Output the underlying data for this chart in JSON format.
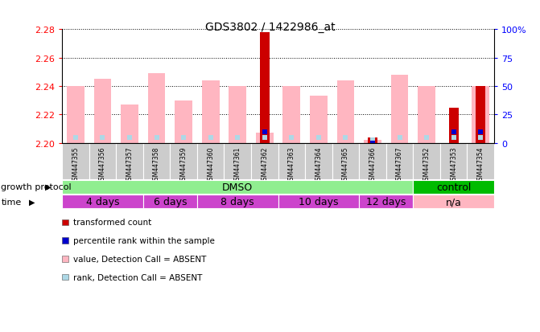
{
  "title": "GDS3802 / 1422986_at",
  "samples": [
    "GSM447355",
    "GSM447356",
    "GSM447357",
    "GSM447358",
    "GSM447359",
    "GSM447360",
    "GSM447361",
    "GSM447362",
    "GSM447363",
    "GSM447364",
    "GSM447365",
    "GSM447366",
    "GSM447367",
    "GSM447352",
    "GSM447353",
    "GSM447354"
  ],
  "pink_values": [
    2.24,
    2.245,
    2.227,
    2.249,
    2.23,
    2.244,
    2.24,
    2.207,
    2.24,
    2.233,
    2.244,
    2.202,
    2.248,
    2.24,
    0.0,
    2.24
  ],
  "red_values": [
    0.0,
    0.0,
    0.0,
    0.0,
    0.0,
    0.0,
    0.0,
    2.278,
    0.0,
    0.0,
    0.0,
    2.204,
    0.0,
    0.0,
    2.225,
    2.24
  ],
  "blue_rank_pct": [
    5,
    5,
    5,
    5,
    5,
    5,
    5,
    10,
    5,
    5,
    5,
    0,
    5,
    5,
    10,
    10
  ],
  "blue_absent": [
    true,
    true,
    true,
    true,
    true,
    true,
    true,
    false,
    true,
    true,
    true,
    false,
    true,
    true,
    false,
    false
  ],
  "lightblue_rank_pct": [
    5,
    5,
    5,
    5,
    5,
    5,
    5,
    5,
    5,
    5,
    5,
    3,
    5,
    5,
    5,
    5
  ],
  "lightblue_absent": [
    true,
    true,
    true,
    true,
    true,
    true,
    true,
    true,
    true,
    true,
    true,
    true,
    true,
    true,
    true,
    true
  ],
  "pink_absent": [
    true,
    true,
    true,
    true,
    true,
    true,
    true,
    false,
    true,
    true,
    true,
    false,
    true,
    true,
    false,
    true
  ],
  "y_min": 2.2,
  "y_max": 2.28,
  "y_ticks": [
    2.2,
    2.22,
    2.24,
    2.26,
    2.28
  ],
  "y_right_ticks_pct": [
    0,
    25,
    50,
    75,
    100
  ],
  "y_right_labels": [
    "0",
    "25",
    "50",
    "75",
    "100%"
  ],
  "growth_protocol_groups": [
    {
      "label": "DMSO",
      "start": 0,
      "end": 12,
      "color": "#90EE90"
    },
    {
      "label": "control",
      "start": 13,
      "end": 15,
      "color": "#00BB00"
    }
  ],
  "time_groups": [
    {
      "label": "4 days",
      "start": 0,
      "end": 2,
      "color": "#CC44CC"
    },
    {
      "label": "6 days",
      "start": 3,
      "end": 4,
      "color": "#CC44CC"
    },
    {
      "label": "8 days",
      "start": 5,
      "end": 7,
      "color": "#CC44CC"
    },
    {
      "label": "10 days",
      "start": 8,
      "end": 10,
      "color": "#CC44CC"
    },
    {
      "label": "12 days",
      "start": 11,
      "end": 12,
      "color": "#CC44CC"
    },
    {
      "label": "n/a",
      "start": 13,
      "end": 15,
      "color": "#FFB6C1"
    }
  ],
  "legend_items": [
    {
      "color": "#CC0000",
      "label": "transformed count"
    },
    {
      "color": "#0000CC",
      "label": "percentile rank within the sample"
    },
    {
      "color": "#FFB6C1",
      "label": "value, Detection Call = ABSENT"
    },
    {
      "color": "#ADD8E6",
      "label": "rank, Detection Call = ABSENT"
    }
  ],
  "bar_width": 0.65,
  "red_bar_width": 0.35,
  "background_color": "#FFFFFF",
  "plot_bg": "#FFFFFF",
  "pink_color": "#FFB6C1",
  "red_color": "#CC0000",
  "blue_color": "#0000CC",
  "lightblue_color": "#ADD8E6"
}
